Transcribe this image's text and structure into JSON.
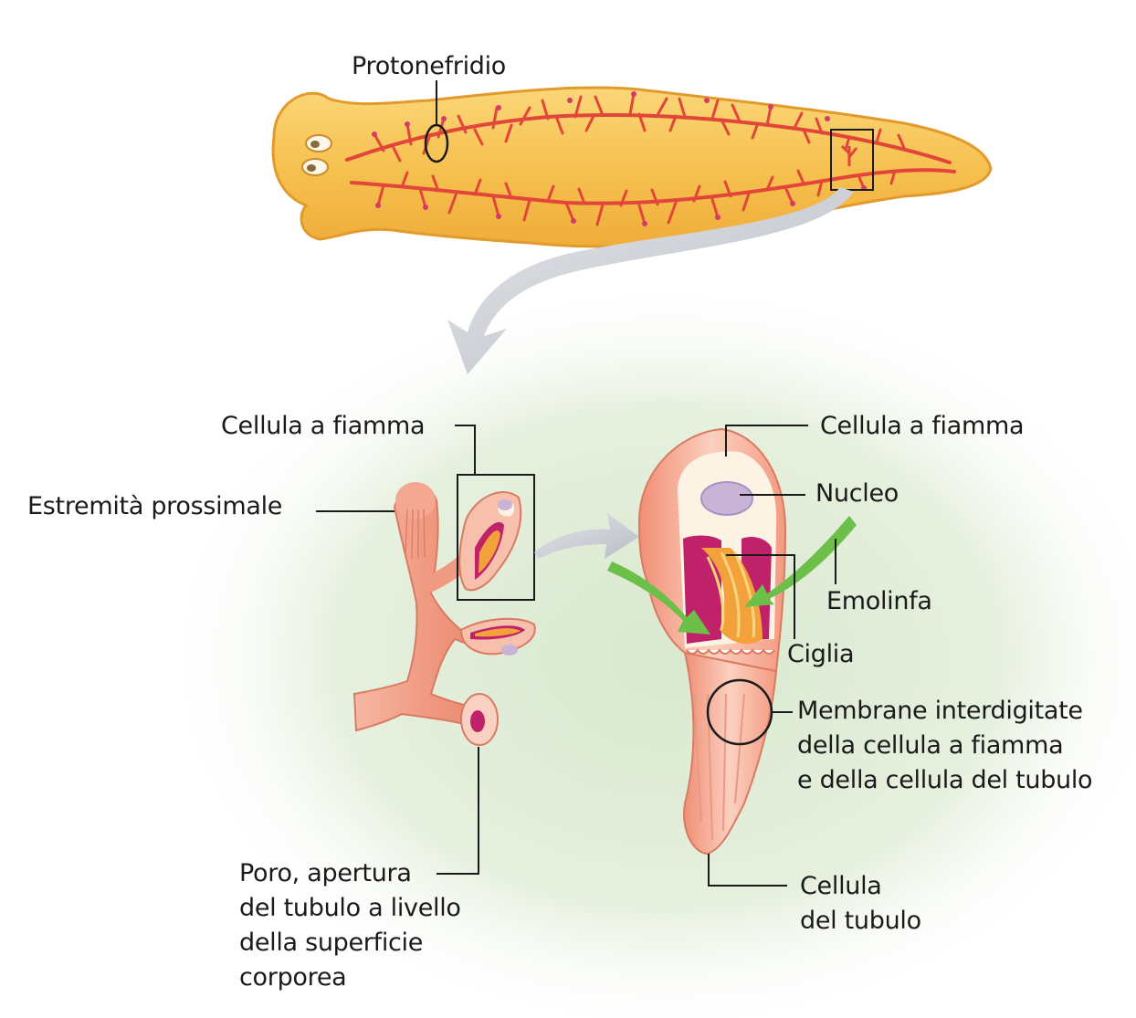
{
  "labels": {
    "protonefridio": "Protonefridio",
    "cellula_fiamma_left": "Cellula a fiamma",
    "estremita": "Estremità prossimale",
    "poro": "Poro, apertura\ndel tubulo a livello\ndella superficie\ncorporea",
    "cellula_fiamma_right": "Cellula a fiamma",
    "nucleo": "Nucleo",
    "emolinfa": "Emolinfa",
    "ciglia": "Ciglia",
    "membrane": "Membrane interdigitate\ndella cellula a fiamma\ne della cellula del tubulo",
    "cellula_tubulo": "Cellula\ndel tubulo"
  },
  "colors": {
    "worm_body": "#f7c55e",
    "worm_outline": "#e29a2c",
    "tubule_network": "#e2453a",
    "glow": "#dbe9d2",
    "tubule_cell": "#f3a18c",
    "flame_core": "#f2a13b",
    "cilia_wall": "#c0226a",
    "hemolymph": "#6cc04a",
    "nucleus": "#c9b4d8",
    "arrow": "#c9ccd2"
  }
}
